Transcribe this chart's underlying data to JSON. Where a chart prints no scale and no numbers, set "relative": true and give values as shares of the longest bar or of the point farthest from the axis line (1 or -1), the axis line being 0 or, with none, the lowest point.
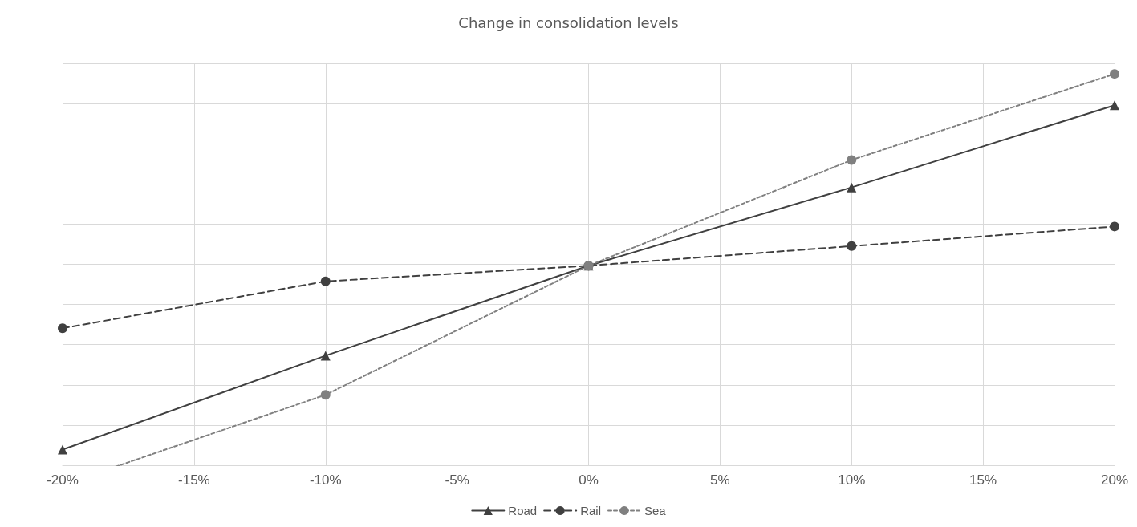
{
  "chart_data": {
    "type": "line",
    "title": "Change in consolidation levels",
    "relative": true,
    "x": [
      -20,
      -10,
      0,
      10,
      20
    ],
    "xlim": [
      -20,
      20
    ],
    "xticks": [
      {
        "value": -20,
        "label": "-20%"
      },
      {
        "value": -15,
        "label": "-15%"
      },
      {
        "value": -10,
        "label": "-10%"
      },
      {
        "value": -5,
        "label": "-5%"
      },
      {
        "value": 0,
        "label": "0%"
      },
      {
        "value": 5,
        "label": "5%"
      },
      {
        "value": 10,
        "label": "10%"
      },
      {
        "value": 15,
        "label": "15%"
      },
      {
        "value": 20,
        "label": "20%"
      }
    ],
    "series": [
      {
        "name": "Road",
        "color": "#404040",
        "marker": "triangle",
        "line_style": "solid",
        "values": [
          0.04,
          0.28,
          0.51,
          0.71,
          0.92
        ]
      },
      {
        "name": "Rail",
        "color": "#404040",
        "marker": "circle",
        "line_style": "dashed",
        "values": [
          0.35,
          0.47,
          0.51,
          0.56,
          0.61
        ]
      },
      {
        "name": "Sea",
        "color": "#808080",
        "marker": "circle",
        "line_style": "dotted",
        "values": [
          -0.05,
          0.18,
          0.51,
          0.78,
          1
        ]
      }
    ],
    "grid": true,
    "legend": "bottom"
  }
}
